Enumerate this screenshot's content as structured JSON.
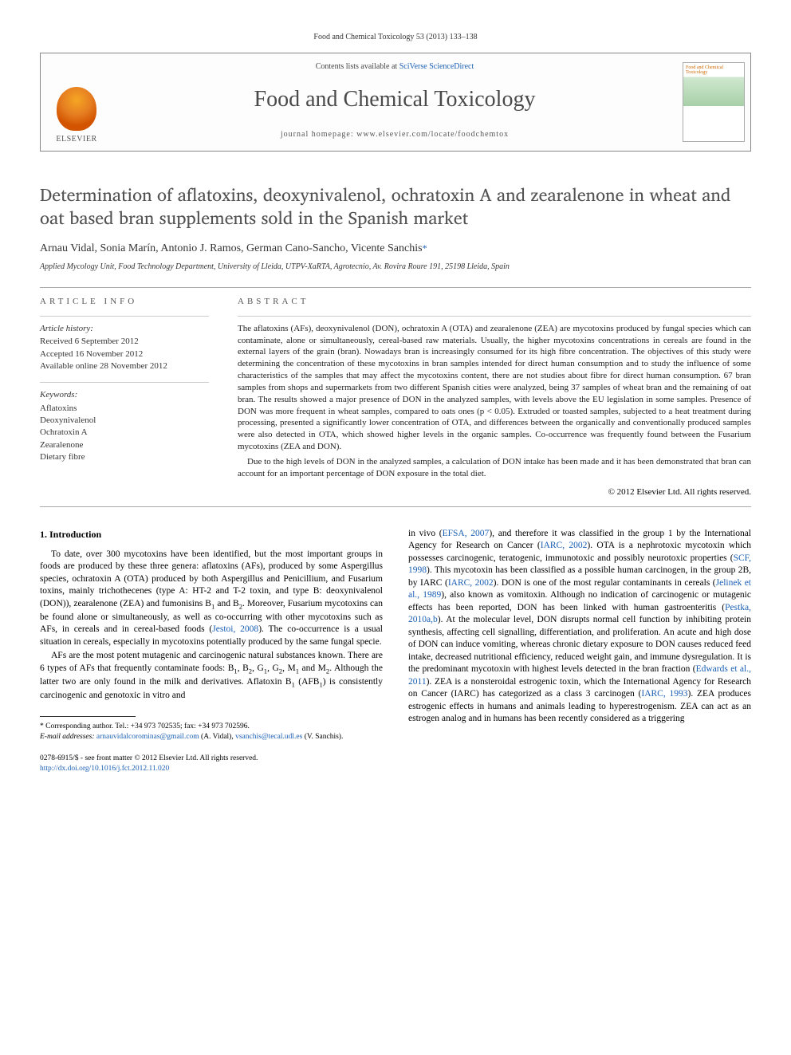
{
  "header": {
    "citation": "Food and Chemical Toxicology 53 (2013) 133–138",
    "publisher": "ELSEVIER",
    "contents_prefix": "Contents lists available at ",
    "contents_link": "SciVerse ScienceDirect",
    "journal_title": "Food and Chemical Toxicology",
    "homepage": "journal homepage: www.elsevier.com/locate/foodchemtox",
    "cover_text": "Food and Chemical Toxicology"
  },
  "article": {
    "title": "Determination of aflatoxins, deoxynivalenol, ochratoxin A and zearalenone in wheat and oat based bran supplements sold in the Spanish market",
    "authors": "Arnau Vidal, Sonia Marín, Antonio J. Ramos, German Cano-Sancho, Vicente Sanchis",
    "corr_mark": "*",
    "affiliation": "Applied Mycology Unit, Food Technology Department, University of Lleida, UTPV-XaRTA, Agrotecnio, Av. Rovira Roure 191, 25198 Lleida, Spain"
  },
  "info": {
    "label": "ARTICLE INFO",
    "history_head": "Article history:",
    "history": [
      "Received 6 September 2012",
      "Accepted 16 November 2012",
      "Available online 28 November 2012"
    ],
    "keywords_head": "Keywords:",
    "keywords": [
      "Aflatoxins",
      "Deoxynivalenol",
      "Ochratoxin A",
      "Zearalenone",
      "Dietary fibre"
    ]
  },
  "abstract": {
    "label": "ABSTRACT",
    "p1": "The aflatoxins (AFs), deoxynivalenol (DON), ochratoxin A (OTA) and zearalenone (ZEA) are mycotoxins produced by fungal species which can contaminate, alone or simultaneously, cereal-based raw materials. Usually, the higher mycotoxins concentrations in cereals are found in the external layers of the grain (bran). Nowadays bran is increasingly consumed for its high fibre concentration. The objectives of this study were determining the concentration of these mycotoxins in bran samples intended for direct human consumption and to study the influence of some characteristics of the samples that may affect the mycotoxins content, there are not studies about fibre for direct human consumption. 67 bran samples from shops and supermarkets from two different Spanish cities were analyzed, being 37 samples of wheat bran and the remaining of oat bran. The results showed a major presence of DON in the analyzed samples, with levels above the EU legislation in some samples. Presence of DON was more frequent in wheat samples, compared to oats ones (p < 0.05). Extruded or toasted samples, subjected to a heat treatment during processing, presented a significantly lower concentration of OTA, and differences between the organically and conventionally produced samples were also detected in OTA, which showed higher levels in the organic samples. Co-occurrence was frequently found between the Fusarium mycotoxins (ZEA and DON).",
    "p2": "Due to the high levels of DON in the analyzed samples, a calculation of DON intake has been made and it has been demonstrated that bran can account for an important percentage of DON exposure in the total diet.",
    "copyright": "© 2012 Elsevier Ltd. All rights reserved."
  },
  "body": {
    "h_intro": "1. Introduction",
    "left_p1a": "To date, over 300 mycotoxins have been identified, but the most important groups in foods are produced by these three genera: aflatoxins (AFs), produced by some Aspergillus species, ochratoxin A (OTA) produced by both Aspergillus and Penicillium, and Fusarium toxins, mainly trichothecenes (type A: HT-2 and T-2 toxin, and type B: deoxynivalenol (DON)), zearalenone (ZEA) and fumonisins B",
    "left_p1b": " and B",
    "left_p1c": ". Moreover, Fusarium mycotoxins can be found alone or simultaneously, as well as co-occurring with other mycotoxins such as AFs, in cereals and in cereal-based foods (",
    "ref_jestoi": "Jestoi, 2008",
    "left_p1d": "). The co-occurrence is a usual situation in cereals, especially in mycotoxins potentially produced by the same fungal specie.",
    "left_p2a": "AFs are the most potent mutagenic and carcinogenic natural substances known. There are 6 types of AFs that frequently contaminate foods: B",
    "left_p2b": ", B",
    "left_p2c": ", G",
    "left_p2d": ", G",
    "left_p2e": ", M",
    "left_p2f": " and M",
    "left_p2g": ". Although the latter two are only found in the milk and derivatives. Aflatoxin B",
    "left_p2h": " (AFB",
    "left_p2i": ") is consistently carcinogenic and genotoxic in vitro and",
    "right_p1a": "in vivo (",
    "ref_efsa": "EFSA, 2007",
    "right_p1b": "), and therefore it was classified in the group 1 by the International Agency for Research on Cancer (",
    "ref_iarc02a": "IARC, 2002",
    "right_p1c": "). OTA is a nephrotoxic mycotoxin which possesses carcinogenic, teratogenic, immunotoxic and possibly neurotoxic properties (",
    "ref_scf": "SCF, 1998",
    "right_p1d": "). This mycotoxin has been classified as a possible human carcinogen, in the group 2B, by IARC (",
    "ref_iarc02b": "IARC, 2002",
    "right_p1e": "). DON is one of the most regular contaminants in cereals (",
    "ref_jelinek": "Jelinek et al., 1989",
    "right_p1f": "), also known as vomitoxin. Although no indication of carcinogenic or mutagenic effects has been reported, DON has been linked with human gastroenteritis (",
    "ref_pestka": "Pestka, 2010a,b",
    "right_p1g": "). At the molecular level, DON disrupts normal cell function by inhibiting protein synthesis, affecting cell signalling, differentiation, and proliferation. An acute and high dose of DON can induce vomiting, whereas chronic dietary exposure to DON causes reduced feed intake, decreased nutritional efficiency, reduced weight gain, and immune dysregulation. It is the predominant mycotoxin with highest levels detected in the bran fraction (",
    "ref_edwards": "Edwards et al., 2011",
    "right_p1h": "). ZEA is a nonsteroidal estrogenic toxin, which the International Agency for Research on Cancer (IARC) has categorized as a class 3 carcinogen (",
    "ref_iarc93": "IARC, 1993",
    "right_p1i": "). ZEA produces estrogenic effects in humans and animals leading to hyperestrogenism. ZEA can act as an estrogen analog and in humans has been recently considered as a triggering"
  },
  "footnotes": {
    "corr": "* Corresponding author. Tel.: +34 973 702535; fax: +34 973 702596.",
    "email_label": "E-mail addresses: ",
    "email1": "arnauvidalcorominas@gmail.com",
    "email1_sfx": " (A. Vidal), ",
    "email2": "vsanchis@tecal.udl.es",
    "email2_sfx": " (V. Sanchis)."
  },
  "bottom": {
    "line1": "0278-6915/$ - see front matter © 2012 Elsevier Ltd. All rights reserved.",
    "doi": "http://dx.doi.org/10.1016/j.fct.2012.11.020"
  }
}
